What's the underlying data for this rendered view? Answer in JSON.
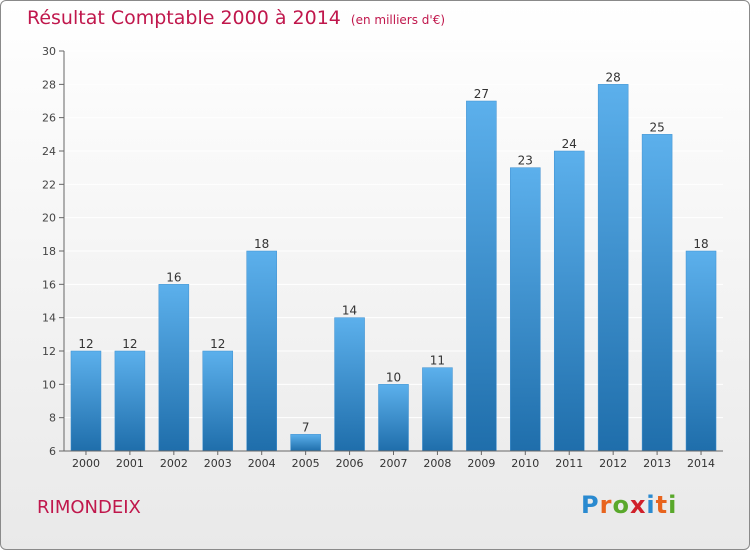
{
  "title": "Résultat Comptable 2000 à 2014",
  "subtitle": "(en milliers d'€)",
  "commune": "RIMONDEIX",
  "logo": {
    "letters": [
      "P",
      "r",
      "o",
      "x",
      "i",
      "t",
      "i"
    ],
    "colors": [
      "#2a8ad0",
      "#e8641e",
      "#59a82b",
      "#d0202a",
      "#2a8ad0",
      "#e8641e",
      "#59a82b"
    ]
  },
  "colors": {
    "bar_light": "#5cb0ec",
    "bar_dark": "#1f6eab",
    "accent": "#c0174c",
    "axis": "#666666",
    "grid": "#ffffff"
  },
  "chart_data": {
    "type": "bar",
    "title": "Résultat Comptable 2000 à 2014",
    "categories": [
      "2000",
      "2001",
      "2002",
      "2003",
      "2004",
      "2005",
      "2006",
      "2007",
      "2008",
      "2009",
      "2010",
      "2011",
      "2012",
      "2013",
      "2014"
    ],
    "values": [
      12,
      12,
      16,
      12,
      18,
      7,
      14,
      10,
      11,
      27,
      23,
      24,
      28,
      25,
      18
    ],
    "ylim": [
      6,
      30
    ],
    "yticks": [
      6,
      8,
      10,
      12,
      14,
      16,
      18,
      20,
      22,
      24,
      26,
      28,
      30
    ],
    "xlabel": "",
    "ylabel": "",
    "grid": true
  }
}
